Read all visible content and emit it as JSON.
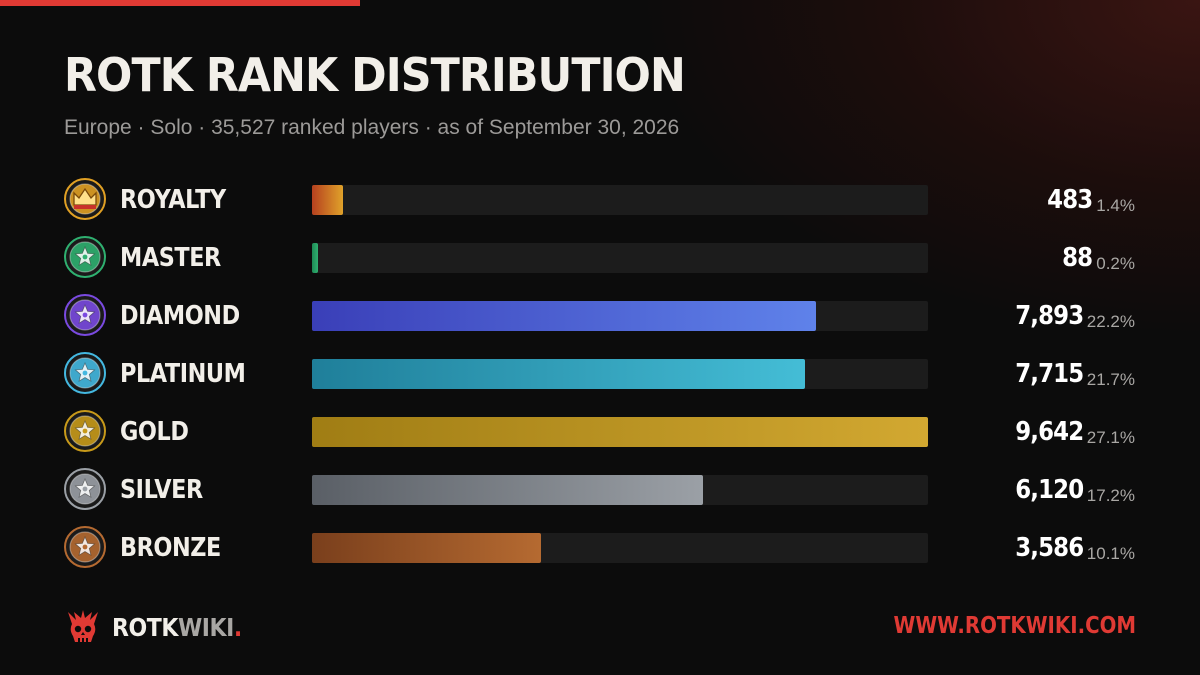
{
  "title": "ROTK RANK DISTRIBUTION",
  "subtitle": "Europe · Solo · 35,527 ranked players · as of September 30, 2026",
  "colors": {
    "accent": "#e03a34",
    "track": "#1c1c1c"
  },
  "chart_data": {
    "type": "bar",
    "orientation": "horizontal",
    "categories": [
      "ROYALTY",
      "MASTER",
      "DIAMOND",
      "PLATINUM",
      "GOLD",
      "SILVER",
      "BRONZE"
    ],
    "values": [
      483,
      88,
      7893,
      7715,
      9642,
      6120,
      3586
    ],
    "value_labels": [
      "483",
      "88",
      "7,893",
      "7,715",
      "9,642",
      "6,120",
      "3,586"
    ],
    "percent_labels": [
      "1.4%",
      "0.2%",
      "22.2%",
      "21.7%",
      "27.1%",
      "17.2%",
      "10.1%"
    ],
    "xlim": [
      0,
      9642
    ],
    "grid": false,
    "bar_colors": [
      [
        "#b5401f",
        "#e0a22a"
      ],
      [
        "#1e8a55",
        "#2fb070"
      ],
      [
        "#3a3fb8",
        "#5f82ea"
      ],
      [
        "#1f7f9a",
        "#44bdd6"
      ],
      [
        "#a07d14",
        "#d2a831"
      ],
      [
        "#5a5f66",
        "#9ba0a6"
      ],
      [
        "#7a3f1c",
        "#b56a31"
      ]
    ],
    "icons": [
      "crown-icon",
      "master-emblem-icon",
      "diamond-emblem-icon",
      "platinum-emblem-icon",
      "gold-emblem-icon",
      "silver-emblem-icon",
      "bronze-emblem-icon"
    ],
    "icon_colors": [
      "#e0a024",
      "#2fb070",
      "#7a4ae0",
      "#44b8e0",
      "#c89a1a",
      "#9ba0a6",
      "#b56a31"
    ]
  },
  "footer": {
    "logo_part1": "ROTK",
    "logo_part2": "WIKI",
    "logo_part3": ".",
    "logo_icon": "demon-skull-icon",
    "url": "WWW.ROTKWIKI.COM"
  }
}
